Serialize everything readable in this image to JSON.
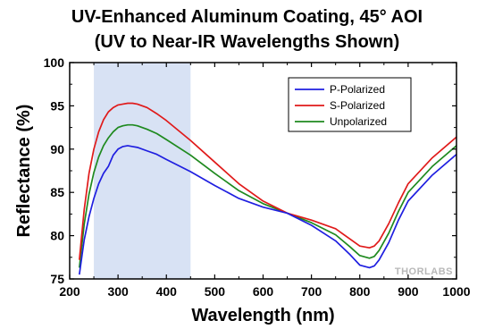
{
  "chart_data": {
    "type": "line",
    "title": "UV-Enhanced Aluminum Coating, 45° AOI",
    "subtitle": "(UV to Near-IR Wavelengths Shown)",
    "xlabel": "Wavelength (nm)",
    "ylabel": "Reflectance (%)",
    "xlim": [
      200,
      1000
    ],
    "ylim": [
      75,
      100
    ],
    "xticks": [
      "200",
      "300",
      "400",
      "500",
      "600",
      "700",
      "800",
      "900",
      "1000"
    ],
    "yticks": [
      "75",
      "80",
      "85",
      "90",
      "95",
      "100"
    ],
    "grid": false,
    "legend_position": "top-right",
    "highlight_band": [
      250,
      450
    ],
    "highlight_color": "#d8e2f4",
    "watermark": "THORLABS",
    "series": [
      {
        "name": "P-Polarized",
        "color": "#1f1fe0",
        "x": [
          220,
          230,
          240,
          250,
          260,
          270,
          280,
          290,
          300,
          310,
          320,
          330,
          340,
          360,
          380,
          400,
          450,
          500,
          550,
          600,
          650,
          700,
          750,
          780,
          800,
          820,
          830,
          840,
          860,
          880,
          900,
          950,
          1000
        ],
        "y": [
          75.5,
          79.5,
          82.2,
          84.3,
          86.0,
          87.2,
          88.0,
          89.3,
          90.0,
          90.3,
          90.4,
          90.3,
          90.2,
          89.8,
          89.4,
          88.8,
          87.4,
          85.8,
          84.3,
          83.3,
          82.6,
          81.2,
          79.4,
          77.8,
          76.6,
          76.3,
          76.5,
          77.2,
          79.2,
          81.8,
          84.0,
          87.0,
          89.4
        ]
      },
      {
        "name": "S-Polarized",
        "color": "#e01a1a",
        "x": [
          220,
          230,
          240,
          250,
          260,
          270,
          280,
          290,
          300,
          310,
          320,
          330,
          340,
          360,
          380,
          400,
          450,
          500,
          550,
          600,
          650,
          700,
          750,
          780,
          800,
          820,
          830,
          840,
          860,
          880,
          900,
          950,
          1000
        ],
        "y": [
          77.2,
          83.0,
          87.2,
          90.0,
          92.0,
          93.4,
          94.3,
          94.8,
          95.1,
          95.2,
          95.3,
          95.3,
          95.2,
          94.8,
          94.1,
          93.3,
          91.0,
          88.5,
          86.0,
          84.0,
          82.6,
          81.8,
          80.8,
          79.6,
          78.8,
          78.6,
          78.8,
          79.4,
          81.4,
          83.8,
          86.0,
          89.0,
          91.4
        ]
      },
      {
        "name": "Unpolarized",
        "color": "#1f8a1f",
        "x": [
          220,
          230,
          240,
          250,
          260,
          270,
          280,
          290,
          300,
          310,
          320,
          330,
          340,
          360,
          380,
          400,
          450,
          500,
          550,
          600,
          650,
          700,
          750,
          780,
          800,
          820,
          830,
          840,
          860,
          880,
          900,
          950,
          1000
        ],
        "y": [
          76.3,
          81.3,
          84.8,
          87.3,
          89.1,
          90.4,
          91.3,
          92.0,
          92.5,
          92.7,
          92.8,
          92.8,
          92.7,
          92.3,
          91.8,
          91.1,
          89.3,
          87.2,
          85.2,
          83.7,
          82.6,
          81.5,
          80.1,
          78.7,
          77.7,
          77.4,
          77.6,
          78.3,
          80.3,
          82.8,
          85.0,
          88.0,
          90.4
        ]
      }
    ]
  }
}
